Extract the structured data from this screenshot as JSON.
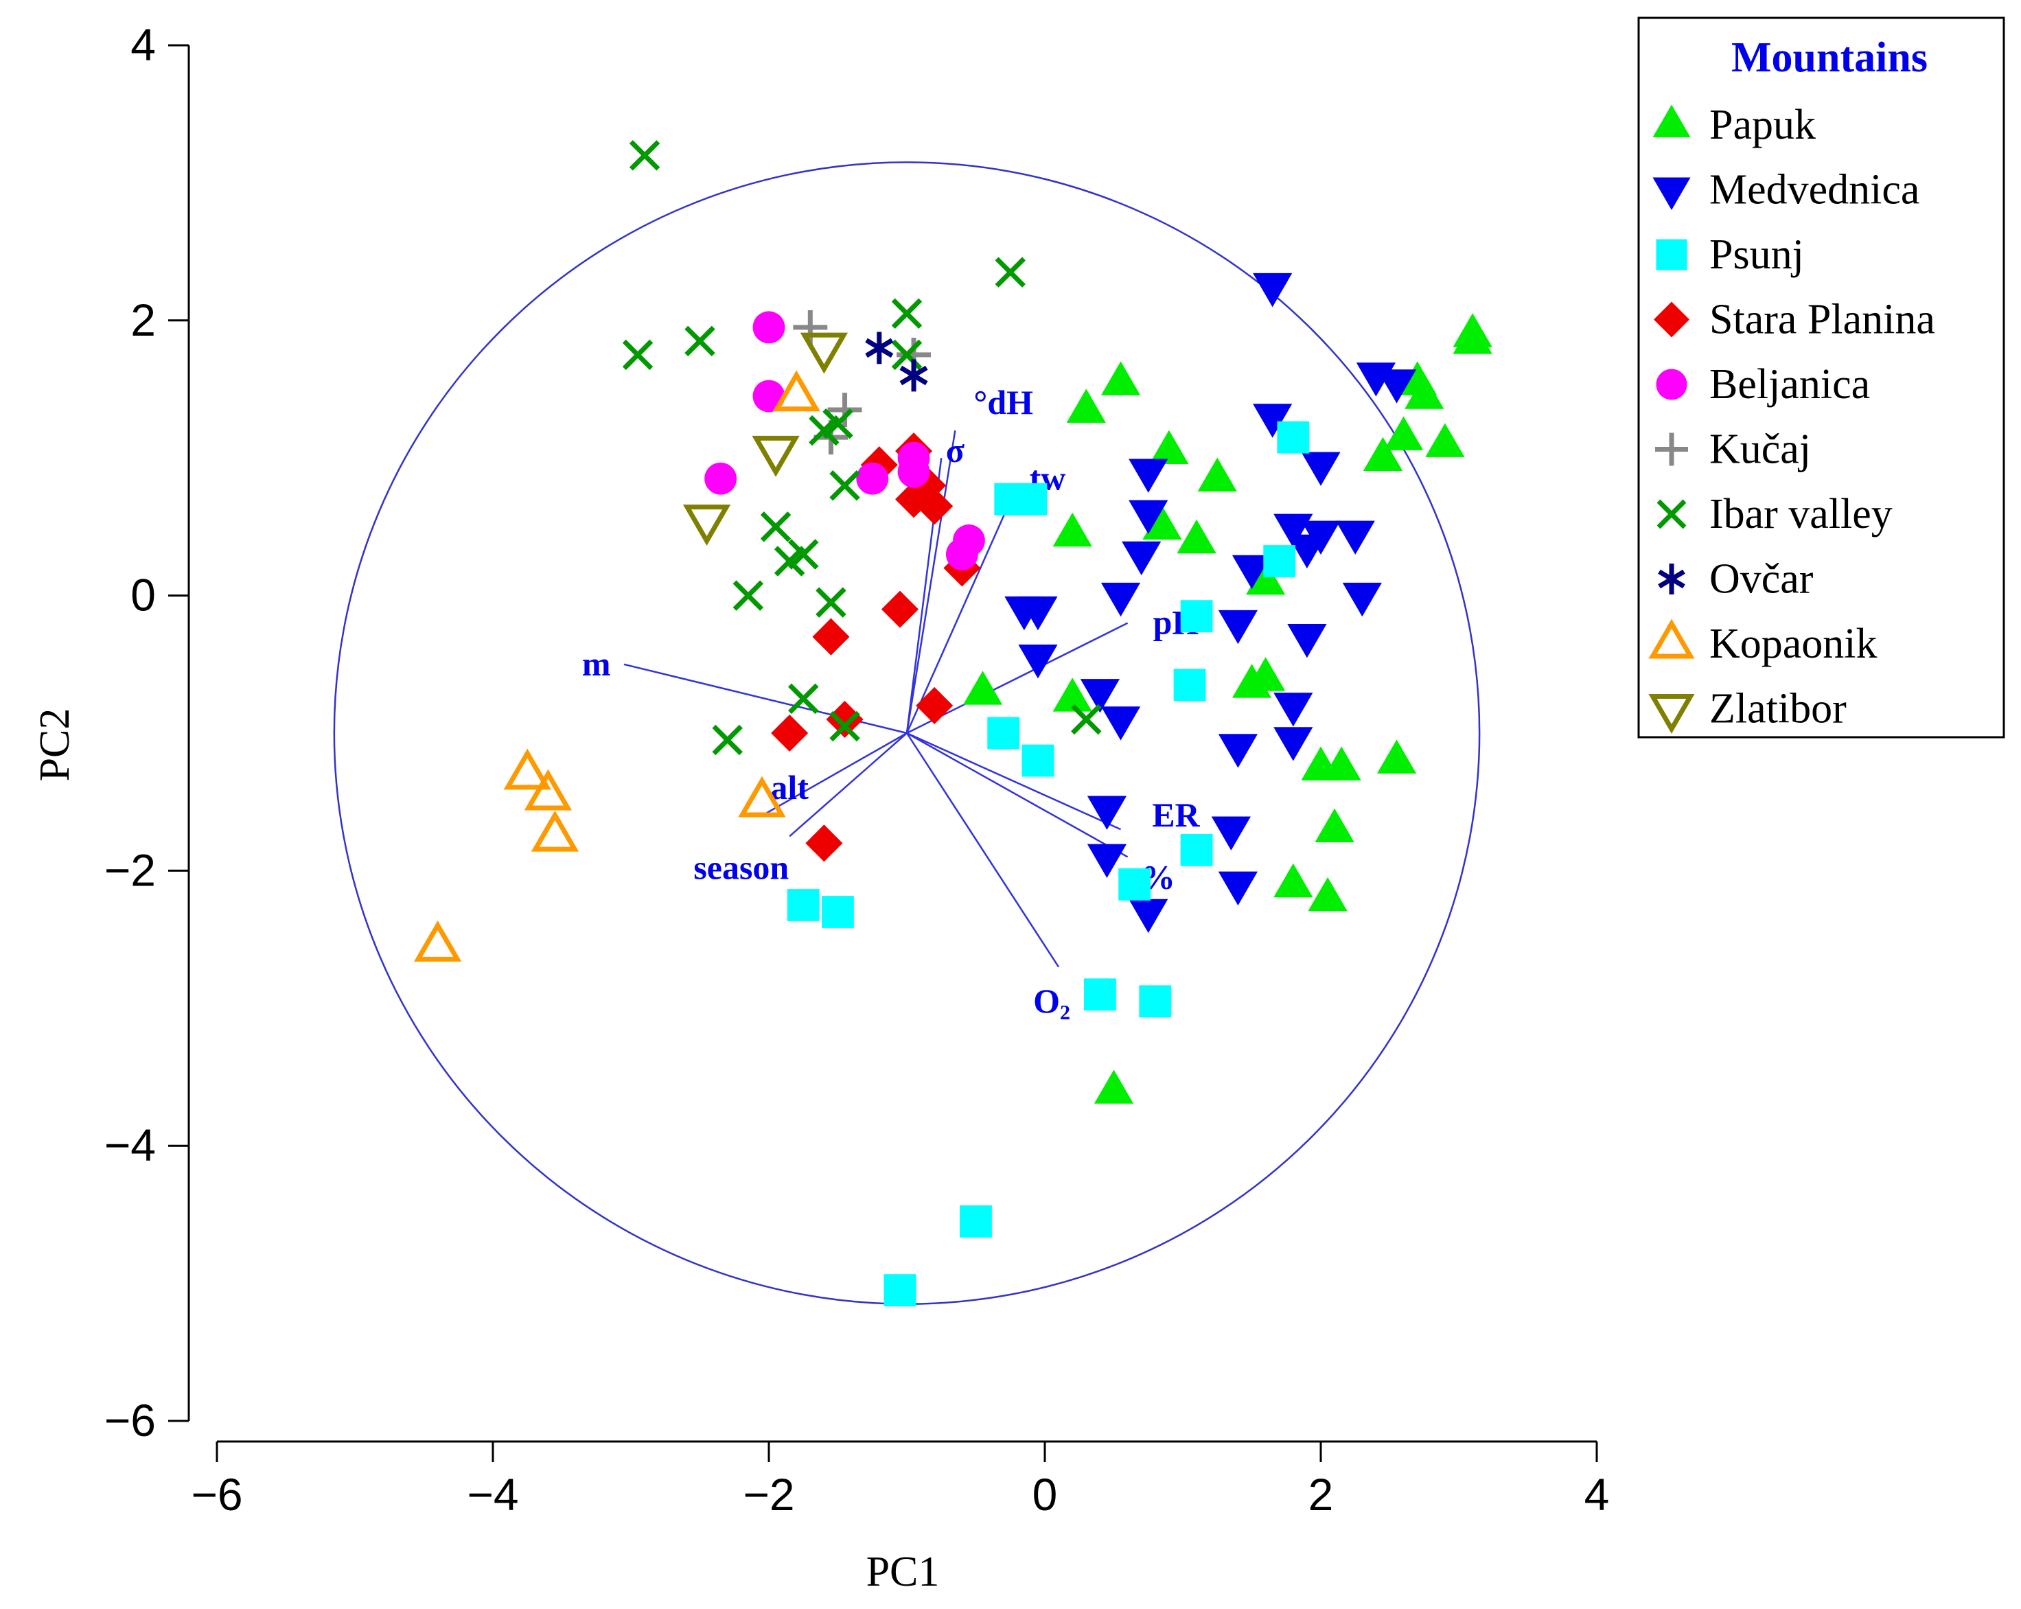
{
  "chart_data": {
    "type": "scatter",
    "subtype": "pca-biplot",
    "xlabel": "PC1",
    "ylabel": "PC2",
    "xlim": [
      -6,
      4
    ],
    "ylim": [
      -6,
      4
    ],
    "xticks": [
      -6,
      -4,
      -2,
      0,
      2,
      4
    ],
    "yticks": [
      4,
      2,
      0,
      -2,
      -4,
      -6
    ],
    "tick_labels_x": [
      "−6",
      "−4",
      "−2",
      "0",
      "2",
      "4"
    ],
    "tick_labels_y": [
      "4",
      "2",
      "0",
      "−2",
      "−4",
      "−6"
    ],
    "legend": {
      "title": "Mountains",
      "placement": "top-right"
    },
    "correlation_circle": {
      "center": [
        -1.0,
        -1.0
      ],
      "radius": 4.15,
      "color": "#3333cc"
    },
    "vector_origin": [
      -1.0,
      -1.0
    ],
    "vectors": [
      {
        "label": "°dH",
        "tip": [
          -0.65,
          1.2
        ],
        "label_at": [
          -0.3,
          1.4
        ]
      },
      {
        "label": "σ",
        "tip": [
          -0.75,
          1.0
        ],
        "label_at": [
          -0.65,
          1.05
        ]
      },
      {
        "label": "tw",
        "tip": [
          -0.2,
          0.8
        ],
        "label_at": [
          0.02,
          0.85
        ]
      },
      {
        "label": "pH",
        "tip": [
          0.6,
          -0.2
        ],
        "label_at": [
          0.95,
          -0.2
        ]
      },
      {
        "label": "m",
        "tip": [
          -3.05,
          -0.5
        ],
        "label_at": [
          -3.25,
          -0.5
        ]
      },
      {
        "label": "alt",
        "tip": [
          -2.05,
          -1.6
        ],
        "label_at": [
          -1.85,
          -1.4
        ]
      },
      {
        "label": "season",
        "tip": [
          -1.85,
          -1.75
        ],
        "label_at": [
          -2.2,
          -1.98
        ]
      },
      {
        "label": "ER",
        "tip": [
          0.55,
          -1.7
        ],
        "label_at": [
          0.95,
          -1.6
        ]
      },
      {
        "label": "%",
        "tip": [
          0.6,
          -1.9
        ],
        "label_at": [
          0.82,
          -2.05
        ]
      },
      {
        "label": "O₂",
        "tip": [
          0.1,
          -2.7
        ],
        "label_at": [
          0.05,
          -2.95
        ]
      }
    ],
    "series": [
      {
        "name": "Papuk",
        "marker": "triangle-up",
        "color": "#00ee00",
        "filled": true,
        "points": [
          [
            3.1,
            1.9
          ],
          [
            3.1,
            1.85
          ],
          [
            2.7,
            1.55
          ],
          [
            2.75,
            1.45
          ],
          [
            2.45,
            1.0
          ],
          [
            2.6,
            1.15
          ],
          [
            2.9,
            1.1
          ],
          [
            0.55,
            1.55
          ],
          [
            0.3,
            1.35
          ],
          [
            0.9,
            1.05
          ],
          [
            1.25,
            0.85
          ],
          [
            0.2,
            0.45
          ],
          [
            0.85,
            0.5
          ],
          [
            1.1,
            0.4
          ],
          [
            1.6,
            0.1
          ],
          [
            1.6,
            -0.6
          ],
          [
            1.5,
            -0.65
          ],
          [
            0.2,
            -0.75
          ],
          [
            -0.45,
            -0.7
          ],
          [
            2.0,
            -1.25
          ],
          [
            2.15,
            -1.25
          ],
          [
            2.55,
            -1.2
          ],
          [
            2.1,
            -1.7
          ],
          [
            1.8,
            -2.1
          ],
          [
            2.05,
            -2.2
          ],
          [
            0.5,
            -3.6
          ]
        ]
      },
      {
        "name": "Medvednica",
        "marker": "triangle-down",
        "color": "#0000ee",
        "filled": true,
        "points": [
          [
            1.65,
            2.25
          ],
          [
            2.4,
            1.6
          ],
          [
            2.55,
            1.55
          ],
          [
            1.65,
            1.3
          ],
          [
            2.0,
            0.95
          ],
          [
            0.75,
            0.9
          ],
          [
            0.75,
            0.6
          ],
          [
            1.8,
            0.5
          ],
          [
            2.0,
            0.45
          ],
          [
            2.25,
            0.45
          ],
          [
            1.9,
            0.35
          ],
          [
            0.7,
            0.3
          ],
          [
            1.5,
            0.2
          ],
          [
            2.3,
            0.0
          ],
          [
            0.55,
            0.0
          ],
          [
            -0.05,
            -0.1
          ],
          [
            -0.15,
            -0.1
          ],
          [
            1.4,
            -0.2
          ],
          [
            1.9,
            -0.3
          ],
          [
            -0.05,
            -0.45
          ],
          [
            0.4,
            -0.7
          ],
          [
            0.55,
            -0.9
          ],
          [
            1.8,
            -0.8
          ],
          [
            1.8,
            -1.05
          ],
          [
            1.4,
            -1.1
          ],
          [
            0.45,
            -1.55
          ],
          [
            1.35,
            -1.7
          ],
          [
            0.45,
            -1.9
          ],
          [
            1.4,
            -2.1
          ],
          [
            0.75,
            -2.3
          ]
        ]
      },
      {
        "name": "Psunj",
        "marker": "square",
        "color": "#00ffff",
        "filled": true,
        "points": [
          [
            1.8,
            1.15
          ],
          [
            -0.25,
            0.7
          ],
          [
            -0.1,
            0.7
          ],
          [
            1.7,
            0.25
          ],
          [
            1.1,
            -0.15
          ],
          [
            1.05,
            -0.65
          ],
          [
            -0.3,
            -1.0
          ],
          [
            -0.05,
            -1.2
          ],
          [
            1.1,
            -1.85
          ],
          [
            0.65,
            -2.1
          ],
          [
            -1.75,
            -2.25
          ],
          [
            -1.5,
            -2.3
          ],
          [
            0.4,
            -2.9
          ],
          [
            0.8,
            -2.95
          ],
          [
            -0.5,
            -4.55
          ],
          [
            -1.05,
            -5.05
          ]
        ]
      },
      {
        "name": "Stara Planina",
        "marker": "diamond",
        "color": "#ee0000",
        "filled": true,
        "points": [
          [
            -0.95,
            1.05
          ],
          [
            -1.2,
            0.95
          ],
          [
            -0.85,
            0.8
          ],
          [
            -0.95,
            0.7
          ],
          [
            -0.8,
            0.65
          ],
          [
            -0.6,
            0.2
          ],
          [
            -1.05,
            -0.1
          ],
          [
            -1.55,
            -0.3
          ],
          [
            -0.8,
            -0.8
          ],
          [
            -1.45,
            -0.9
          ],
          [
            -1.85,
            -1.0
          ],
          [
            -1.6,
            -1.8
          ]
        ]
      },
      {
        "name": "Beljanica",
        "marker": "circle",
        "color": "#ff00ff",
        "filled": true,
        "points": [
          [
            -2.0,
            1.95
          ],
          [
            -2.0,
            1.45
          ],
          [
            -0.95,
            1.0
          ],
          [
            -0.95,
            0.9
          ],
          [
            -1.25,
            0.85
          ],
          [
            -2.35,
            0.85
          ],
          [
            -0.55,
            0.4
          ],
          [
            -0.6,
            0.3
          ]
        ]
      },
      {
        "name": "Kučaj",
        "marker": "plus",
        "color": "#888888",
        "filled": false,
        "points": [
          [
            -1.7,
            1.95
          ],
          [
            -1.45,
            1.35
          ],
          [
            -0.95,
            1.75
          ],
          [
            -1.55,
            1.15
          ]
        ]
      },
      {
        "name": "Ibar valley",
        "marker": "x",
        "color": "#009900",
        "filled": false,
        "points": [
          [
            -2.9,
            3.2
          ],
          [
            -0.25,
            2.35
          ],
          [
            -1.0,
            2.05
          ],
          [
            -2.5,
            1.85
          ],
          [
            -2.95,
            1.75
          ],
          [
            -1.0,
            1.75
          ],
          [
            -1.5,
            1.25
          ],
          [
            -1.6,
            1.2
          ],
          [
            -1.45,
            0.8
          ],
          [
            -1.95,
            0.5
          ],
          [
            -1.85,
            0.25
          ],
          [
            -1.75,
            0.3
          ],
          [
            -2.15,
            0.0
          ],
          [
            -1.55,
            -0.05
          ],
          [
            -1.75,
            -0.75
          ],
          [
            -1.45,
            -0.95
          ],
          [
            -2.3,
            -1.05
          ],
          [
            0.3,
            -0.9
          ]
        ]
      },
      {
        "name": "Ovčar",
        "marker": "asterisk",
        "color": "#000080",
        "filled": false,
        "points": [
          [
            -1.2,
            1.8
          ],
          [
            -0.95,
            1.6
          ]
        ]
      },
      {
        "name": "Kopaonik",
        "marker": "triangle-up",
        "color": "#ff9900",
        "filled": false,
        "points": [
          [
            -1.8,
            1.45
          ],
          [
            -3.75,
            -1.3
          ],
          [
            -3.6,
            -1.45
          ],
          [
            -3.55,
            -1.75
          ],
          [
            -2.05,
            -1.5
          ],
          [
            -4.4,
            -2.55
          ]
        ]
      },
      {
        "name": "Zlatibor",
        "marker": "triangle-down",
        "color": "#808000",
        "filled": false,
        "points": [
          [
            -1.6,
            1.8
          ],
          [
            -1.95,
            1.05
          ],
          [
            -2.45,
            0.55
          ]
        ]
      }
    ]
  }
}
